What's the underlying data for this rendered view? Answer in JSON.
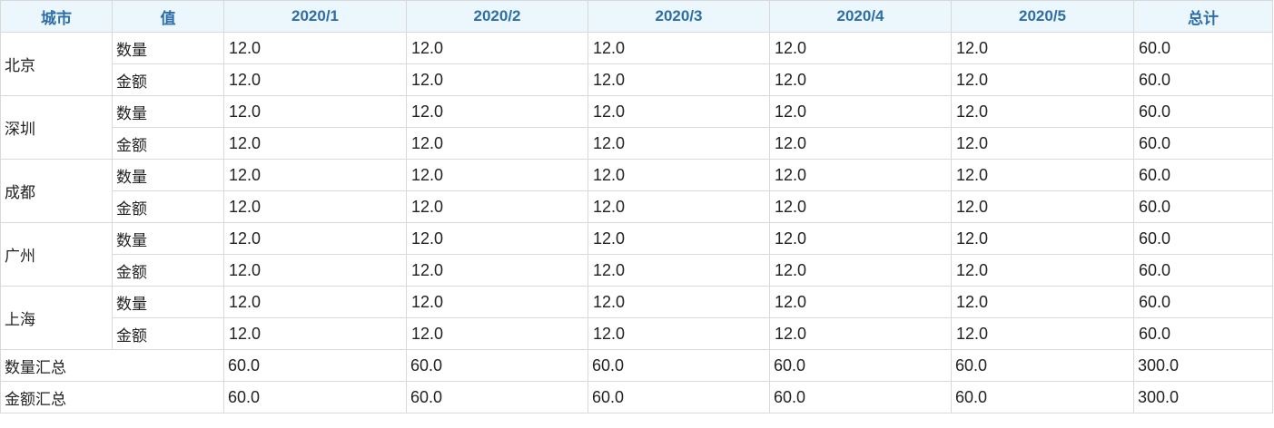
{
  "table": {
    "headers": [
      "城市",
      "值",
      "2020/1",
      "2020/2",
      "2020/3",
      "2020/4",
      "2020/5",
      "总计"
    ],
    "rows": [
      {
        "city": "北京",
        "measures": [
          {
            "label": "数量",
            "values": [
              "12.0",
              "12.0",
              "12.0",
              "12.0",
              "12.0"
            ],
            "total": "60.0"
          },
          {
            "label": "金额",
            "values": [
              "12.0",
              "12.0",
              "12.0",
              "12.0",
              "12.0"
            ],
            "total": "60.0"
          }
        ]
      },
      {
        "city": "深圳",
        "measures": [
          {
            "label": "数量",
            "values": [
              "12.0",
              "12.0",
              "12.0",
              "12.0",
              "12.0"
            ],
            "total": "60.0"
          },
          {
            "label": "金额",
            "values": [
              "12.0",
              "12.0",
              "12.0",
              "12.0",
              "12.0"
            ],
            "total": "60.0"
          }
        ]
      },
      {
        "city": "成都",
        "measures": [
          {
            "label": "数量",
            "values": [
              "12.0",
              "12.0",
              "12.0",
              "12.0",
              "12.0"
            ],
            "total": "60.0"
          },
          {
            "label": "金额",
            "values": [
              "12.0",
              "12.0",
              "12.0",
              "12.0",
              "12.0"
            ],
            "total": "60.0"
          }
        ]
      },
      {
        "city": "广州",
        "measures": [
          {
            "label": "数量",
            "values": [
              "12.0",
              "12.0",
              "12.0",
              "12.0",
              "12.0"
            ],
            "total": "60.0"
          },
          {
            "label": "金额",
            "values": [
              "12.0",
              "12.0",
              "12.0",
              "12.0",
              "12.0"
            ],
            "total": "60.0"
          }
        ]
      },
      {
        "city": "上海",
        "measures": [
          {
            "label": "数量",
            "values": [
              "12.0",
              "12.0",
              "12.0",
              "12.0",
              "12.0"
            ],
            "total": "60.0"
          },
          {
            "label": "金额",
            "values": [
              "12.0",
              "12.0",
              "12.0",
              "12.0",
              "12.0"
            ],
            "total": "60.0"
          }
        ]
      }
    ],
    "totals": [
      {
        "label": "数量汇总",
        "values": [
          "60.0",
          "60.0",
          "60.0",
          "60.0",
          "60.0"
        ],
        "total": "300.0"
      },
      {
        "label": "金额汇总",
        "values": [
          "60.0",
          "60.0",
          "60.0",
          "60.0",
          "60.0"
        ],
        "total": "300.0"
      }
    ]
  },
  "colors": {
    "header_bg": "#ebf7fd",
    "header_text": "#2e6ea8",
    "grid_line": "#d9d9d9",
    "body_text": "#222222"
  }
}
